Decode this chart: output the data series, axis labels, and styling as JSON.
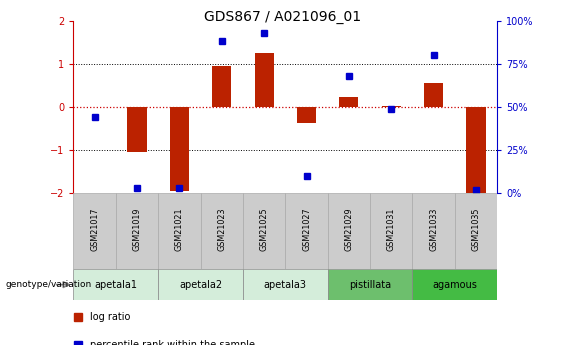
{
  "title": "GDS867 / A021096_01",
  "samples": [
    "GSM21017",
    "GSM21019",
    "GSM21021",
    "GSM21023",
    "GSM21025",
    "GSM21027",
    "GSM21029",
    "GSM21031",
    "GSM21033",
    "GSM21035"
  ],
  "log_ratio": [
    0.0,
    -1.05,
    -1.95,
    0.95,
    1.25,
    -0.38,
    0.22,
    0.02,
    0.55,
    -2.0
  ],
  "percentile_rank": [
    44,
    3,
    3,
    88,
    93,
    10,
    68,
    49,
    80,
    2
  ],
  "groups": [
    {
      "name": "apetala1",
      "indices": [
        0,
        1
      ],
      "color": "#d4edda"
    },
    {
      "name": "apetala2",
      "indices": [
        2,
        3
      ],
      "color": "#d4edda"
    },
    {
      "name": "apetala3",
      "indices": [
        4,
        5
      ],
      "color": "#d4edda"
    },
    {
      "name": "pistillata",
      "indices": [
        6,
        7
      ],
      "color": "#6dbf6d"
    },
    {
      "name": "agamous",
      "indices": [
        8,
        9
      ],
      "color": "#44bb44"
    }
  ],
  "ylim_left": [
    -2,
    2
  ],
  "ylim_right": [
    0,
    100
  ],
  "bar_color": "#bb2200",
  "dot_color": "#0000cc",
  "hline_color": "#cc0000",
  "grid_color": "#000000",
  "sample_box_color": "#cccccc",
  "sample_box_edge": "#aaaaaa",
  "genotype_label": "genotype/variation",
  "legend_bar": "log ratio",
  "legend_dot": "percentile rank within the sample",
  "left_yticks": [
    -2,
    -1,
    0,
    1,
    2
  ],
  "right_yticks": [
    0,
    25,
    50,
    75,
    100
  ],
  "right_yticklabels": [
    "0%",
    "25%",
    "50%",
    "75%",
    "100%"
  ]
}
